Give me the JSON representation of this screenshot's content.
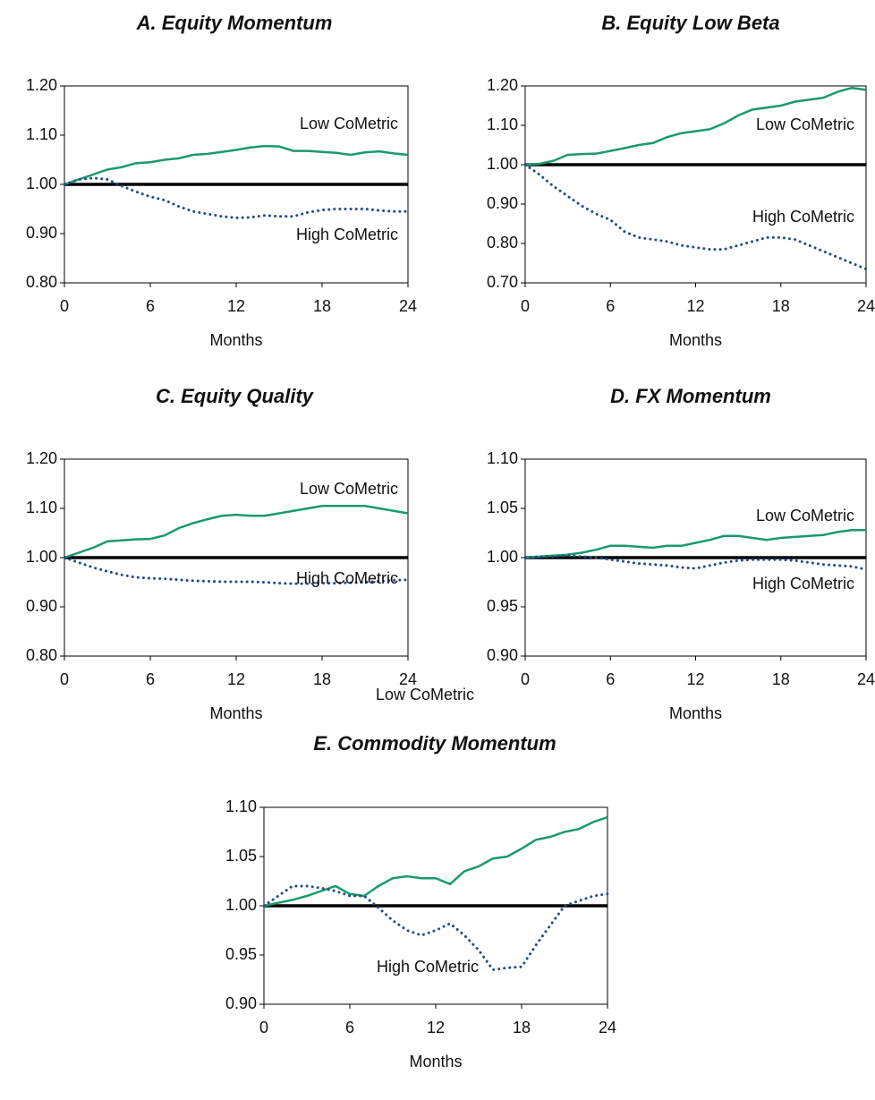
{
  "chart_data": [
    {
      "type": "line",
      "title": "A. Equity Momentum",
      "xlabel": "Months",
      "x": [
        0,
        1,
        2,
        3,
        4,
        5,
        6,
        7,
        8,
        9,
        10,
        11,
        12,
        13,
        14,
        15,
        16,
        17,
        18,
        19,
        20,
        21,
        22,
        23,
        24
      ],
      "xlim": [
        0,
        24
      ],
      "xticks": [
        0,
        6,
        12,
        18,
        24
      ],
      "ylim": [
        0.8,
        1.2
      ],
      "yticks": [
        {
          "value": 0.8,
          "label": "0.80"
        },
        {
          "value": 0.9,
          "label": "0.90"
        },
        {
          "value": 1.0,
          "label": "1.00"
        },
        {
          "value": 1.1,
          "label": "1.10"
        },
        {
          "value": 1.2,
          "label": "1.20"
        }
      ],
      "hline": 1.0,
      "series": [
        {
          "name": "Low CoMetric",
          "color": "#1a9a6c",
          "style": "solid",
          "values": [
            1.0,
            1.01,
            1.02,
            1.03,
            1.035,
            1.043,
            1.045,
            1.05,
            1.053,
            1.06,
            1.062,
            1.066,
            1.07,
            1.075,
            1.078,
            1.077,
            1.068,
            1.068,
            1.066,
            1.064,
            1.06,
            1.065,
            1.067,
            1.063,
            1.06
          ]
        },
        {
          "name": "High CoMetric",
          "color": "#1f4e8c",
          "style": "dotted",
          "values": [
            1.0,
            1.01,
            1.013,
            1.01,
            0.997,
            0.985,
            0.975,
            0.968,
            0.955,
            0.945,
            0.94,
            0.935,
            0.932,
            0.933,
            0.937,
            0.935,
            0.935,
            0.943,
            0.948,
            0.95,
            0.95,
            0.95,
            0.947,
            0.945,
            0.945
          ]
        }
      ]
    },
    {
      "type": "line",
      "title": "B. Equity Low Beta",
      "xlabel": "Months",
      "x": [
        0,
        1,
        2,
        3,
        4,
        5,
        6,
        7,
        8,
        9,
        10,
        11,
        12,
        13,
        14,
        15,
        16,
        17,
        18,
        19,
        20,
        21,
        22,
        23,
        24
      ],
      "xlim": [
        0,
        24
      ],
      "xticks": [
        0,
        6,
        12,
        18,
        24
      ],
      "ylim": [
        0.7,
        1.2
      ],
      "yticks": [
        {
          "value": 0.7,
          "label": "0.70"
        },
        {
          "value": 0.8,
          "label": "0.80"
        },
        {
          "value": 0.9,
          "label": "0.90"
        },
        {
          "value": 1.0,
          "label": "1.00"
        },
        {
          "value": 1.1,
          "label": "1.10"
        },
        {
          "value": 1.2,
          "label": "1.20"
        }
      ],
      "hline": 1.0,
      "series": [
        {
          "name": "Low CoMetric",
          "color": "#1a9a6c",
          "style": "solid",
          "values": [
            1.0,
            1.002,
            1.01,
            1.025,
            1.027,
            1.028,
            1.035,
            1.042,
            1.05,
            1.055,
            1.07,
            1.08,
            1.085,
            1.09,
            1.105,
            1.125,
            1.14,
            1.145,
            1.15,
            1.16,
            1.165,
            1.17,
            1.185,
            1.195,
            1.19
          ]
        },
        {
          "name": "High CoMetric",
          "color": "#1f4e8c",
          "style": "dotted",
          "values": [
            1.0,
            0.975,
            0.945,
            0.92,
            0.895,
            0.875,
            0.86,
            0.83,
            0.815,
            0.81,
            0.805,
            0.795,
            0.79,
            0.785,
            0.785,
            0.795,
            0.805,
            0.815,
            0.815,
            0.81,
            0.795,
            0.78,
            0.765,
            0.75,
            0.735
          ]
        }
      ]
    },
    {
      "type": "line",
      "title": "C. Equity Quality",
      "xlabel": "Months",
      "x": [
        0,
        1,
        2,
        3,
        4,
        5,
        6,
        7,
        8,
        9,
        10,
        11,
        12,
        13,
        14,
        15,
        16,
        17,
        18,
        19,
        20,
        21,
        22,
        23,
        24
      ],
      "xlim": [
        0,
        24
      ],
      "xticks": [
        0,
        6,
        12,
        18,
        24
      ],
      "ylim": [
        0.8,
        1.2
      ],
      "yticks": [
        {
          "value": 0.8,
          "label": "0.80"
        },
        {
          "value": 0.9,
          "label": "0.90"
        },
        {
          "value": 1.0,
          "label": "1.00"
        },
        {
          "value": 1.1,
          "label": "1.10"
        },
        {
          "value": 1.2,
          "label": "1.20"
        }
      ],
      "hline": 1.0,
      "series": [
        {
          "name": "Low CoMetric",
          "color": "#1a9a6c",
          "style": "solid",
          "values": [
            1.0,
            1.01,
            1.02,
            1.033,
            1.035,
            1.037,
            1.038,
            1.045,
            1.06,
            1.07,
            1.078,
            1.085,
            1.087,
            1.085,
            1.085,
            1.09,
            1.095,
            1.1,
            1.105,
            1.105,
            1.105,
            1.105,
            1.1,
            1.095,
            1.09
          ]
        },
        {
          "name": "High CoMetric",
          "color": "#1f4e8c",
          "style": "dotted",
          "values": [
            1.0,
            0.99,
            0.98,
            0.972,
            0.965,
            0.96,
            0.958,
            0.957,
            0.955,
            0.953,
            0.952,
            0.951,
            0.951,
            0.951,
            0.95,
            0.948,
            0.947,
            0.947,
            0.948,
            0.948,
            0.949,
            0.95,
            0.952,
            0.954,
            0.955
          ]
        }
      ]
    },
    {
      "type": "line",
      "title": "D. FX Momentum",
      "xlabel": "Months",
      "x": [
        0,
        1,
        2,
        3,
        4,
        5,
        6,
        7,
        8,
        9,
        10,
        11,
        12,
        13,
        14,
        15,
        16,
        17,
        18,
        19,
        20,
        21,
        22,
        23,
        24
      ],
      "xlim": [
        0,
        24
      ],
      "xticks": [
        0,
        6,
        12,
        18,
        24
      ],
      "ylim": [
        0.9,
        1.1
      ],
      "yticks": [
        {
          "value": 0.9,
          "label": "0.90"
        },
        {
          "value": 0.95,
          "label": "0.95"
        },
        {
          "value": 1.0,
          "label": "1.00"
        },
        {
          "value": 1.05,
          "label": "1.05"
        },
        {
          "value": 1.1,
          "label": "1.10"
        }
      ],
      "hline": 1.0,
      "series": [
        {
          "name": "Low CoMetric",
          "color": "#1a9a6c",
          "style": "solid",
          "values": [
            1.0,
            1.001,
            1.002,
            1.003,
            1.005,
            1.008,
            1.012,
            1.012,
            1.011,
            1.01,
            1.012,
            1.012,
            1.015,
            1.018,
            1.022,
            1.022,
            1.02,
            1.018,
            1.02,
            1.021,
            1.022,
            1.023,
            1.026,
            1.028,
            1.028
          ]
        },
        {
          "name": "High CoMetric",
          "color": "#1f4e8c",
          "style": "dotted",
          "values": [
            1.0,
            1.001,
            1.001,
            1.002,
            1.001,
            1.0,
            0.998,
            0.996,
            0.994,
            0.993,
            0.992,
            0.99,
            0.989,
            0.992,
            0.995,
            0.997,
            0.998,
            0.998,
            0.998,
            0.997,
            0.995,
            0.993,
            0.992,
            0.991,
            0.988
          ]
        }
      ]
    },
    {
      "type": "line",
      "title": "E. Commodity Momentum",
      "xlabel": "Months",
      "x": [
        0,
        1,
        2,
        3,
        4,
        5,
        6,
        7,
        8,
        9,
        10,
        11,
        12,
        13,
        14,
        15,
        16,
        17,
        18,
        19,
        20,
        21,
        22,
        23,
        24
      ],
      "xlim": [
        0,
        24
      ],
      "xticks": [
        0,
        6,
        12,
        18,
        24
      ],
      "ylim": [
        0.9,
        1.1
      ],
      "yticks": [
        {
          "value": 0.9,
          "label": "0.90"
        },
        {
          "value": 0.95,
          "label": "0.95"
        },
        {
          "value": 1.0,
          "label": "1.00"
        },
        {
          "value": 1.05,
          "label": "1.05"
        },
        {
          "value": 1.1,
          "label": "1.10"
        }
      ],
      "hline": 1.0,
      "series": [
        {
          "name": "Low CoMetric",
          "color": "#1a9a6c",
          "style": "solid",
          "values": [
            1.0,
            1.003,
            1.006,
            1.01,
            1.015,
            1.02,
            1.012,
            1.01,
            1.02,
            1.028,
            1.03,
            1.028,
            1.028,
            1.022,
            1.035,
            1.04,
            1.048,
            1.05,
            1.058,
            1.067,
            1.07,
            1.075,
            1.078,
            1.085,
            1.09
          ]
        },
        {
          "name": "High CoMetric",
          "color": "#1f4e8c",
          "style": "dotted",
          "values": [
            1.0,
            1.01,
            1.02,
            1.02,
            1.018,
            1.015,
            1.01,
            1.01,
            0.998,
            0.985,
            0.975,
            0.97,
            0.975,
            0.982,
            0.97,
            0.955,
            0.935,
            0.937,
            0.938,
            0.96,
            0.98,
            1.0,
            1.005,
            1.01,
            1.012
          ]
        }
      ]
    }
  ]
}
